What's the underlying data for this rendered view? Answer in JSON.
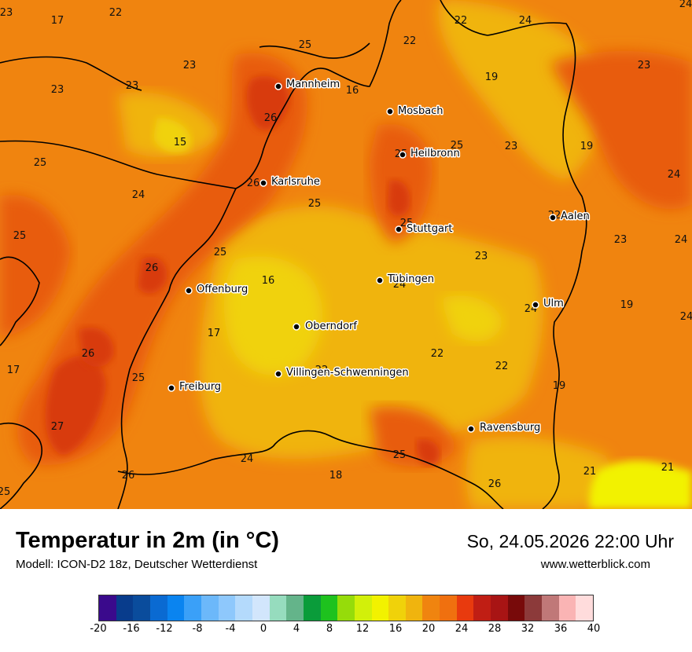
{
  "title": "Temperatur in 2m (in °C)",
  "model": "Modell: ICON-D2 18z, Deutscher Wetterdienst",
  "datetime": "So, 24.05.2026 22:00 Uhr",
  "website": "www.wetterblick.com",
  "colors": {
    "base": "#f0840f",
    "warm": "#e85c10",
    "hot": "#d83a0e",
    "mild": "#f0b40e",
    "cool": "#f0d20a",
    "yellow": "#f2f200",
    "border": "#000000"
  },
  "cities": [
    {
      "name": "Mannheim"
    },
    {
      "name": "Mosbach"
    },
    {
      "name": "Heilbronn"
    },
    {
      "name": "Karlsruhe"
    },
    {
      "name": "Aalen"
    },
    {
      "name": "Stuttgart"
    },
    {
      "name": "Tübingen"
    },
    {
      "name": "Offenburg"
    },
    {
      "name": "Ulm"
    },
    {
      "name": "Oberndorf"
    },
    {
      "name": "Villingen-Schwenningen"
    },
    {
      "name": "Freiburg"
    },
    {
      "name": "Ravensburg"
    }
  ],
  "temperatures": [
    "23",
    "17",
    "22",
    "22",
    "24",
    "22",
    "25",
    "23",
    "23",
    "23",
    "16",
    "19",
    "23",
    "26",
    "15",
    "25",
    "25",
    "23",
    "19",
    "25",
    "24",
    "26",
    "25",
    "24",
    "24",
    "25",
    "25",
    "22",
    "23",
    "24",
    "23",
    "25",
    "26",
    "16",
    "24",
    "24",
    "19",
    "24",
    "17",
    "22",
    "26",
    "22",
    "17",
    "25",
    "22",
    "19",
    "27",
    "25",
    "24",
    "26",
    "18",
    "21",
    "21",
    "25",
    "26"
  ],
  "legend": {
    "colors": [
      "#3a0a8c",
      "#083c8c",
      "#0a4c9c",
      "#0a6ad2",
      "#0a84f0",
      "#3aa0f8",
      "#6cb8fa",
      "#8ec8fc",
      "#b4dafc",
      "#d2e6fc",
      "#96dcbe",
      "#64b48a",
      "#0a9c3a",
      "#1ec21e",
      "#96dc0a",
      "#d2f00a",
      "#f2f200",
      "#f0d20a",
      "#f0b40e",
      "#f0840f",
      "#f0700f",
      "#e83a0e",
      "#c01e14",
      "#a81414",
      "#780a0a",
      "#8c3a3a",
      "#c07878",
      "#fab4b4",
      "#ffdcdc"
    ],
    "ticks": [
      "-20",
      "-16",
      "-12",
      "-8",
      "-4",
      "0",
      "4",
      "8",
      "12",
      "16",
      "20",
      "24",
      "28",
      "32",
      "36",
      "40"
    ]
  }
}
